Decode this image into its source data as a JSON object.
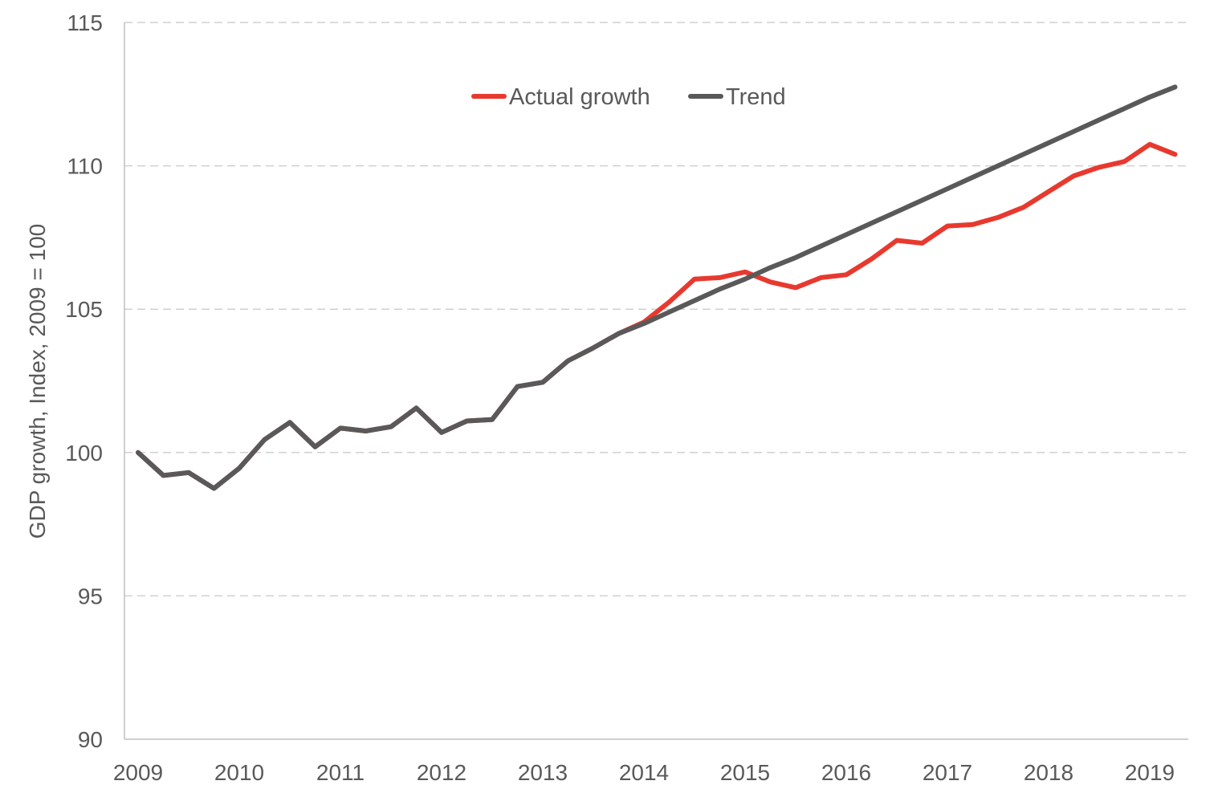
{
  "chart_data": {
    "type": "line",
    "title": "",
    "xlabel": "",
    "ylabel": "GDP growth,  Index,  2009 = 100",
    "ylim": [
      90,
      115
    ],
    "yticks": [
      "90",
      "95",
      "100",
      "105",
      "110",
      "115"
    ],
    "xticks": [
      "2009",
      "2010",
      "2011",
      "2012",
      "2013",
      "2014",
      "2015",
      "2016",
      "2017",
      "2018",
      "2019"
    ],
    "grid": true,
    "legend_position": "top-center",
    "x": [
      "2009 Q1",
      "2009 Q2",
      "2009 Q3",
      "2009 Q4",
      "2010 Q1",
      "2010 Q2",
      "2010 Q3",
      "2010 Q4",
      "2011 Q1",
      "2011 Q2",
      "2011 Q3",
      "2011 Q4",
      "2012 Q1",
      "2012 Q2",
      "2012 Q3",
      "2012 Q4",
      "2013 Q1",
      "2013 Q2",
      "2013 Q3",
      "2013 Q4",
      "2014 Q1",
      "2014 Q2",
      "2014 Q3",
      "2014 Q4",
      "2015 Q1",
      "2015 Q2",
      "2015 Q3",
      "2015 Q4",
      "2016 Q1",
      "2016 Q2",
      "2016 Q3",
      "2016 Q4",
      "2017 Q1",
      "2017 Q2",
      "2017 Q3",
      "2017 Q4",
      "2018 Q1",
      "2018 Q2",
      "2018 Q3",
      "2018 Q4",
      "2019 Q1",
      "2019 Q2"
    ],
    "series": [
      {
        "name": "Actual growth",
        "color": "#e8392f",
        "values": [
          100.0,
          99.2,
          99.3,
          98.75,
          99.45,
          100.45,
          101.05,
          100.2,
          100.85,
          100.75,
          100.9,
          101.55,
          100.7,
          101.1,
          101.15,
          102.3,
          102.45,
          103.2,
          103.65,
          104.15,
          104.55,
          105.25,
          106.05,
          106.1,
          106.3,
          105.95,
          105.75,
          106.1,
          106.2,
          106.75,
          107.4,
          107.3,
          107.9,
          107.95,
          108.2,
          108.55,
          109.1,
          109.65,
          109.95,
          110.15,
          110.75,
          110.4
        ]
      },
      {
        "name": "Trend",
        "color": "#595959",
        "values": [
          100.0,
          99.2,
          99.3,
          98.75,
          99.45,
          100.45,
          101.05,
          100.2,
          100.85,
          100.75,
          100.9,
          101.55,
          100.7,
          101.1,
          101.15,
          102.3,
          102.45,
          103.2,
          103.65,
          104.15,
          104.5,
          104.9,
          105.3,
          105.7,
          106.05,
          106.45,
          106.8,
          107.2,
          107.6,
          108.0,
          108.4,
          108.8,
          109.2,
          109.6,
          110.0,
          110.4,
          110.8,
          111.2,
          111.6,
          112.0,
          112.4,
          112.75
        ]
      }
    ]
  }
}
